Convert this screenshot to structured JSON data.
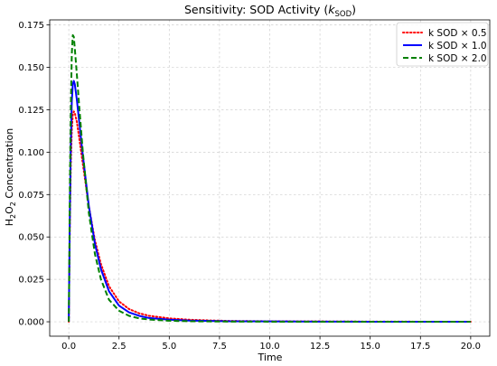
{
  "chart_data": {
    "type": "line",
    "title_main": "Sensitivity: SOD Activity (",
    "title_k": "k",
    "title_sub": "SOD",
    "title_end": ")",
    "xlabel": "Time",
    "ylabel_pre": "H",
    "ylabel_sub1": "2",
    "ylabel_mid": "O",
    "ylabel_sub2": "2",
    "ylabel_post": " Concentration",
    "xlim": [
      -0.95,
      20.95
    ],
    "ylim": [
      -0.0085,
      0.178
    ],
    "xticks": [
      0,
      2.5,
      5,
      7.5,
      10,
      12.5,
      15,
      17.5,
      20
    ],
    "xtick_labels": [
      "0.0",
      "2.5",
      "5.0",
      "7.5",
      "10.0",
      "12.5",
      "15.0",
      "17.5",
      "20.0"
    ],
    "yticks": [
      0,
      0.025,
      0.05,
      0.075,
      0.1,
      0.125,
      0.15,
      0.175
    ],
    "ytick_labels": [
      "0.000",
      "0.025",
      "0.050",
      "0.075",
      "0.100",
      "0.125",
      "0.150",
      "0.175"
    ],
    "grid": true,
    "legend_position": "top-right",
    "series": [
      {
        "name": "k SOD × 0.5",
        "color": "#ff0000",
        "style": "dotted",
        "points": [
          [
            0,
            0
          ],
          [
            0.05,
            0.055
          ],
          [
            0.1,
            0.092
          ],
          [
            0.15,
            0.113
          ],
          [
            0.2,
            0.122
          ],
          [
            0.25,
            0.124
          ],
          [
            0.3,
            0.123
          ],
          [
            0.4,
            0.118
          ],
          [
            0.5,
            0.11
          ],
          [
            0.7,
            0.093
          ],
          [
            1,
            0.068
          ],
          [
            1.3,
            0.048
          ],
          [
            1.6,
            0.034
          ],
          [
            2,
            0.021
          ],
          [
            2.5,
            0.012
          ],
          [
            3,
            0.0075
          ],
          [
            3.5,
            0.005
          ],
          [
            4,
            0.0035
          ],
          [
            5,
            0.002
          ],
          [
            6,
            0.0012
          ],
          [
            7,
            0.0008
          ],
          [
            8,
            0.0005
          ],
          [
            10,
            0.0003
          ],
          [
            12.5,
            0.0002
          ],
          [
            15,
            0.0001
          ],
          [
            17.5,
            5e-05
          ],
          [
            20,
            3e-05
          ]
        ]
      },
      {
        "name": "k SOD × 1.0",
        "color": "#0000ff",
        "style": "solid",
        "points": [
          [
            0,
            0
          ],
          [
            0.05,
            0.06
          ],
          [
            0.1,
            0.105
          ],
          [
            0.15,
            0.13
          ],
          [
            0.2,
            0.14
          ],
          [
            0.25,
            0.142
          ],
          [
            0.3,
            0.14
          ],
          [
            0.4,
            0.131
          ],
          [
            0.5,
            0.12
          ],
          [
            0.7,
            0.098
          ],
          [
            1,
            0.068
          ],
          [
            1.3,
            0.046
          ],
          [
            1.6,
            0.031
          ],
          [
            2,
            0.018
          ],
          [
            2.5,
            0.0095
          ],
          [
            3,
            0.0055
          ],
          [
            3.5,
            0.0035
          ],
          [
            4,
            0.0022
          ],
          [
            5,
            0.0012
          ],
          [
            6,
            0.0007
          ],
          [
            7,
            0.0005
          ],
          [
            8,
            0.0003
          ],
          [
            10,
            0.0002
          ],
          [
            12.5,
            0.0001
          ],
          [
            15,
            5e-05
          ],
          [
            17.5,
            3e-05
          ],
          [
            20,
            2e-05
          ]
        ]
      },
      {
        "name": "k SOD × 2.0",
        "color": "#008000",
        "style": "dashed",
        "points": [
          [
            0,
            0
          ],
          [
            0.05,
            0.07
          ],
          [
            0.1,
            0.125
          ],
          [
            0.15,
            0.158
          ],
          [
            0.2,
            0.169
          ],
          [
            0.25,
            0.168
          ],
          [
            0.3,
            0.161
          ],
          [
            0.4,
            0.146
          ],
          [
            0.5,
            0.13
          ],
          [
            0.7,
            0.1
          ],
          [
            1,
            0.064
          ],
          [
            1.3,
            0.04
          ],
          [
            1.6,
            0.025
          ],
          [
            2,
            0.013
          ],
          [
            2.5,
            0.0065
          ],
          [
            3,
            0.0035
          ],
          [
            3.5,
            0.002
          ],
          [
            4,
            0.0013
          ],
          [
            5,
            0.0006
          ],
          [
            6,
            0.0003
          ],
          [
            7,
            0.0002
          ],
          [
            8,
            0.0001
          ],
          [
            10,
            5e-05
          ],
          [
            12.5,
            3e-05
          ],
          [
            15,
            2e-05
          ],
          [
            17.5,
            1e-05
          ],
          [
            20,
            1e-05
          ]
        ]
      }
    ]
  }
}
